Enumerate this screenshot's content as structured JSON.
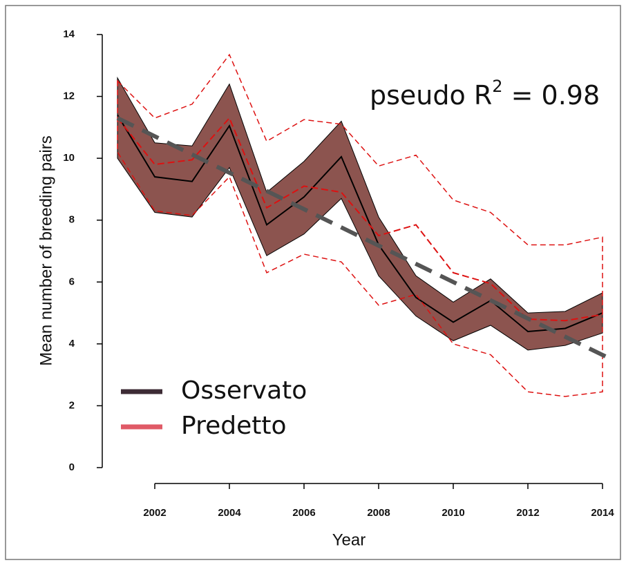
{
  "chart_data": {
    "type": "line",
    "y_label": "Mean number of breeding pairs",
    "x_label": "Year",
    "annotation": [
      "pseudo R",
      "2",
      " = 0.98"
    ],
    "x": [
      2001,
      2002,
      2003,
      2004,
      2005,
      2006,
      2007,
      2008,
      2009,
      2010,
      2011,
      2012,
      2013,
      2014
    ],
    "series": [
      {
        "name": "Osservato",
        "color": "#3d2b35",
        "band_color": "#8c544f",
        "values": [
          11.4,
          9.4,
          9.25,
          11.05,
          7.85,
          8.75,
          10.05,
          7.2,
          5.5,
          4.7,
          5.4,
          4.4,
          4.5,
          5.0
        ],
        "upper": [
          12.6,
          10.5,
          10.4,
          12.4,
          8.9,
          9.9,
          11.2,
          8.1,
          6.2,
          5.35,
          6.1,
          5.0,
          5.05,
          5.65
        ],
        "lower": [
          10.0,
          8.25,
          8.1,
          9.7,
          6.85,
          7.55,
          8.7,
          6.2,
          4.9,
          4.1,
          4.6,
          3.8,
          3.95,
          4.35
        ]
      },
      {
        "name": "Predetto",
        "color": "#e05a67",
        "line_color": "#dd1111",
        "values": [
          11.3,
          9.8,
          9.95,
          11.3,
          8.4,
          9.1,
          8.9,
          7.5,
          7.85,
          6.3,
          5.95,
          4.8,
          4.75,
          4.95
        ],
        "upper": [
          12.5,
          11.3,
          11.75,
          13.35,
          10.55,
          11.25,
          11.1,
          9.75,
          10.1,
          8.65,
          8.25,
          7.2,
          7.2,
          7.45
        ],
        "lower": [
          10.2,
          8.3,
          8.15,
          9.4,
          6.3,
          6.9,
          6.65,
          5.25,
          5.6,
          4.0,
          3.65,
          2.45,
          2.3,
          2.45
        ]
      }
    ],
    "trend": {
      "x": [
        2001,
        2014.24
      ],
      "values": [
        11.3,
        3.5
      ],
      "color": "#555555"
    },
    "xlim": [
      2001,
      2014
    ],
    "ylim": [
      0,
      14
    ],
    "xticks": [
      2002,
      2004,
      2006,
      2008,
      2010,
      2012,
      2014
    ],
    "yticks": [
      0,
      2,
      4,
      6,
      8,
      10,
      12,
      14
    ]
  }
}
